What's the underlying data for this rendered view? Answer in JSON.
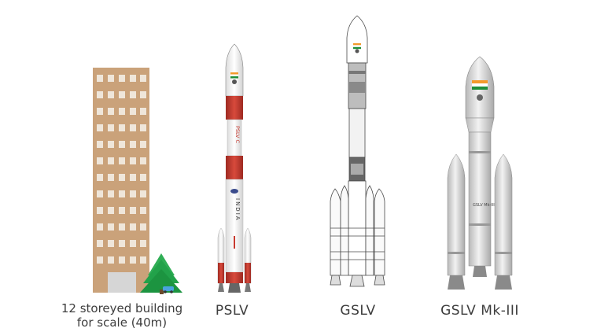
{
  "captions": {
    "building_line1": "12 storeyed building",
    "building_line2": "for scale (40m)",
    "pslv": "PSLV",
    "gslv": "GSLV",
    "gslv_mk3": "GSLV Mk-III"
  },
  "rocket_text": {
    "pslv_vertical": "PSLV C",
    "pslv_india": "INDIA",
    "gslv_mk3_body": "GSLV Mk-III"
  },
  "colors": {
    "building": "#caa27a",
    "window": "#efe6da",
    "tree": "#22a24a",
    "pslv_red": "#c8392f",
    "rocket_white": "#f5f5f5",
    "mk3_gray": "#d9d9d9",
    "outline": "#555555"
  }
}
